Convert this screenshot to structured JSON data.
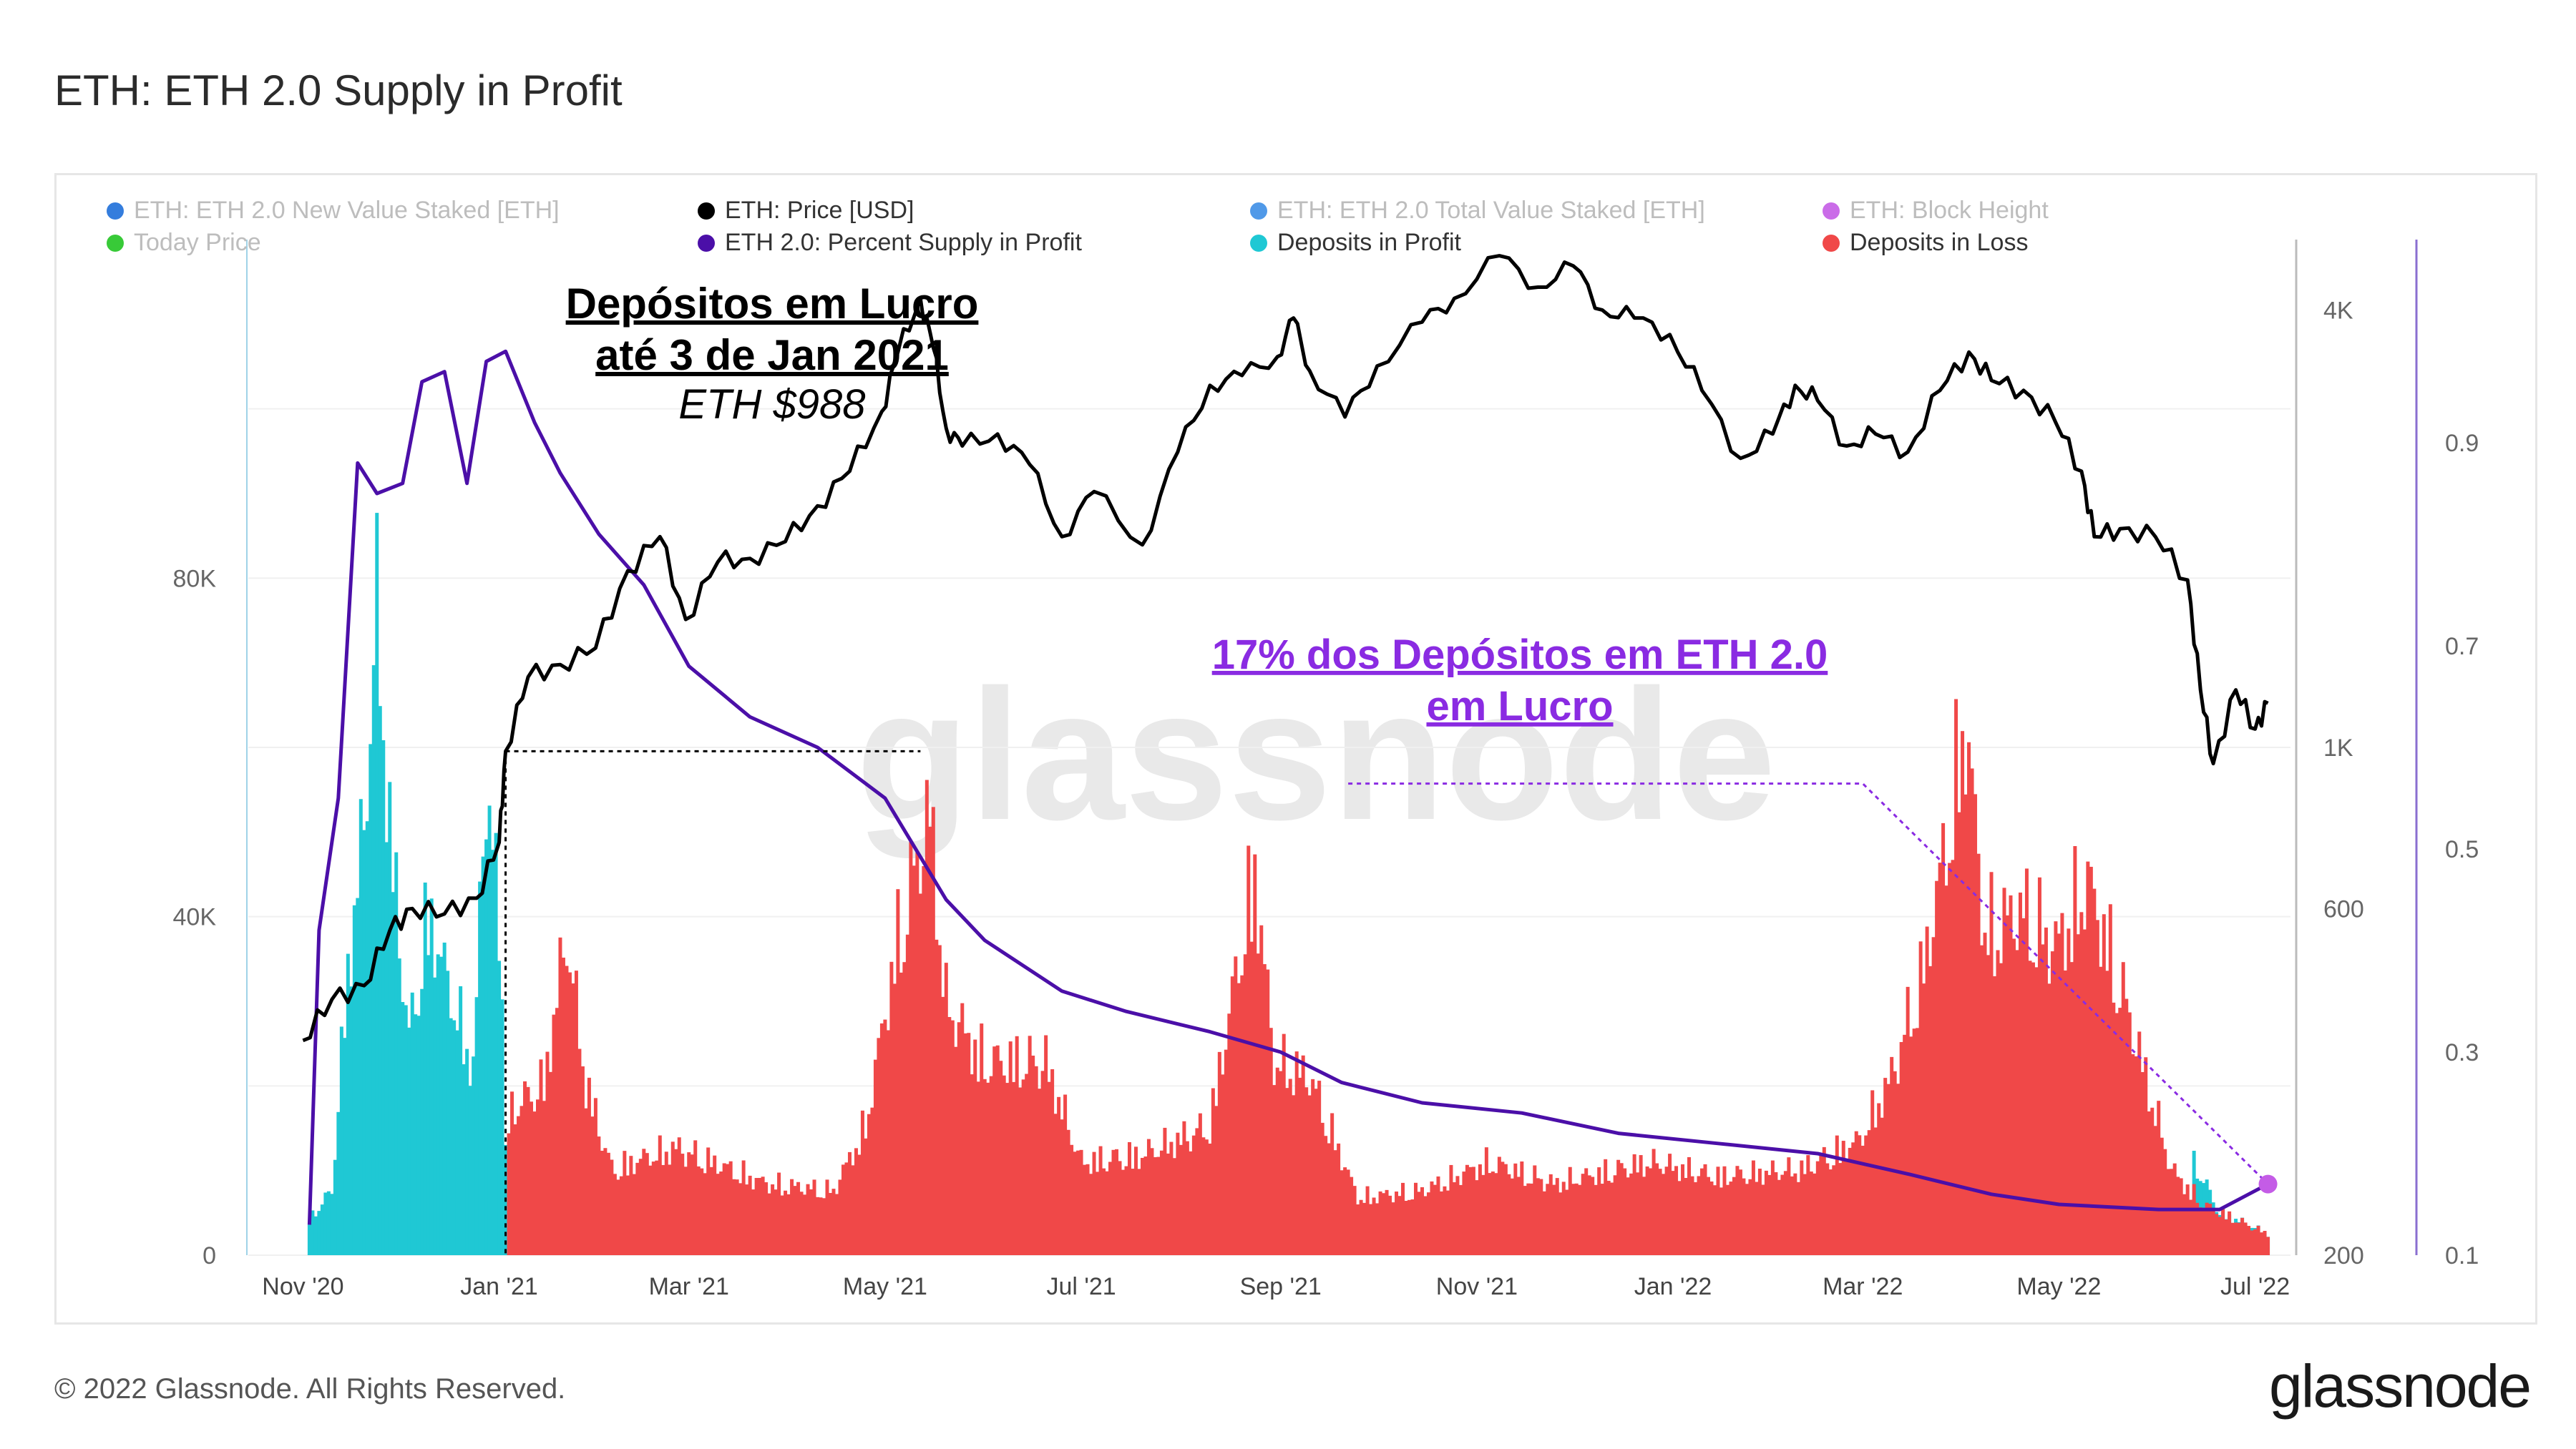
{
  "page": {
    "title": "ETH: ETH 2.0 Supply in Profit",
    "copyright": "© 2022 Glassnode. All Rights Reserved.",
    "logo": "glassnode",
    "watermark": "glassnode"
  },
  "chart_data": {
    "type": "bar",
    "x_type": "date",
    "x_ticks": [
      "Nov '20",
      "Jan '21",
      "Mar '21",
      "May '21",
      "Jul '21",
      "Sep '21",
      "Nov '21",
      "Jan '22",
      "Mar '22",
      "May '22",
      "Jul '22"
    ],
    "y_left": {
      "range": [
        0,
        120000
      ],
      "ticks": [
        "0",
        "40K",
        "80K"
      ]
    },
    "y_price": {
      "scale": "log",
      "range": [
        200,
        5000
      ],
      "ticks": [
        "200",
        "600",
        "1K",
        "4K"
      ]
    },
    "y_percent": {
      "range": [
        0.1,
        1.1
      ],
      "ticks": [
        "0.1",
        "0.3",
        "0.5",
        "0.7",
        "0.9"
      ]
    },
    "legend": {
      "placement": "top",
      "items": [
        {
          "label": "ETH: ETH 2.0 New Value Staked [ETH]",
          "color": "#1e6fd9",
          "muted": true
        },
        {
          "label": "ETH: Price [USD]",
          "color": "#000000",
          "muted": false
        },
        {
          "label": "ETH: ETH 2.0 Total Value Staked [ETH]",
          "color": "#3d8ee6",
          "muted": true
        },
        {
          "label": "ETH: Block Height",
          "color": "#c45ce6",
          "muted": true
        },
        {
          "label": "Today Price",
          "color": "#22c422",
          "muted": true
        },
        {
          "label": "ETH 2.0: Percent Supply in Profit",
          "color": "#4b0fa8",
          "muted": false
        },
        {
          "label": "Deposits in Profit",
          "color": "#1fc8d4",
          "muted": false
        },
        {
          "label": "Deposits in Loss",
          "color": "#f04848",
          "muted": false
        }
      ]
    },
    "series": [
      {
        "name": "ETH: Price [USD]",
        "axis": "price",
        "color": "#000000",
        "points": [
          [
            "2020-11-01",
            395
          ],
          [
            "2020-11-10",
            450
          ],
          [
            "2020-11-20",
            470
          ],
          [
            "2020-11-28",
            560
          ],
          [
            "2020-12-05",
            600
          ],
          [
            "2020-12-15",
            590
          ],
          [
            "2020-12-25",
            620
          ],
          [
            "2021-01-01",
            740
          ],
          [
            "2021-01-03",
            988
          ],
          [
            "2021-01-10",
            1250
          ],
          [
            "2021-01-20",
            1300
          ],
          [
            "2021-01-31",
            1370
          ],
          [
            "2021-02-10",
            1750
          ],
          [
            "2021-02-20",
            1950
          ],
          [
            "2021-02-28",
            1500
          ],
          [
            "2021-03-10",
            1800
          ],
          [
            "2021-03-20",
            1820
          ],
          [
            "2021-03-31",
            1920
          ],
          [
            "2021-04-10",
            2150
          ],
          [
            "2021-04-20",
            2400
          ],
          [
            "2021-04-30",
            2900
          ],
          [
            "2021-05-05",
            3500
          ],
          [
            "2021-05-12",
            4150
          ],
          [
            "2021-05-16",
            3550
          ],
          [
            "2021-05-20",
            2750
          ],
          [
            "2021-05-25",
            2600
          ],
          [
            "2021-06-05",
            2700
          ],
          [
            "2021-06-15",
            2450
          ],
          [
            "2021-06-25",
            1950
          ],
          [
            "2021-07-05",
            2250
          ],
          [
            "2021-07-20",
            1900
          ],
          [
            "2021-07-31",
            2550
          ],
          [
            "2021-08-10",
            3150
          ],
          [
            "2021-08-20",
            3250
          ],
          [
            "2021-08-31",
            3450
          ],
          [
            "2021-09-05",
            3900
          ],
          [
            "2021-09-10",
            3300
          ],
          [
            "2021-09-21",
            2850
          ],
          [
            "2021-10-01",
            3350
          ],
          [
            "2021-10-15",
            3850
          ],
          [
            "2021-10-25",
            4150
          ],
          [
            "2021-11-08",
            4750
          ],
          [
            "2021-11-20",
            4300
          ],
          [
            "2021-12-01",
            4600
          ],
          [
            "2021-12-10",
            4000
          ],
          [
            "2021-12-20",
            3900
          ],
          [
            "2021-12-31",
            3700
          ],
          [
            "2022-01-10",
            3100
          ],
          [
            "2022-01-22",
            2500
          ],
          [
            "2022-02-01",
            2700
          ],
          [
            "2022-02-08",
            3150
          ],
          [
            "2022-02-15",
            3000
          ],
          [
            "2022-02-24",
            2600
          ],
          [
            "2022-03-05",
            2700
          ],
          [
            "2022-03-15",
            2550
          ],
          [
            "2022-03-25",
            3100
          ],
          [
            "2022-04-03",
            3500
          ],
          [
            "2022-04-10",
            3200
          ],
          [
            "2022-04-20",
            3100
          ],
          [
            "2022-04-30",
            2800
          ],
          [
            "2022-05-08",
            2400
          ],
          [
            "2022-05-12",
            1950
          ],
          [
            "2022-05-20",
            2000
          ],
          [
            "2022-05-31",
            1950
          ],
          [
            "2022-06-10",
            1700
          ],
          [
            "2022-06-14",
            1200
          ],
          [
            "2022-06-18",
            950
          ],
          [
            "2022-06-25",
            1200
          ],
          [
            "2022-07-01",
            1060
          ],
          [
            "2022-07-05",
            1150
          ]
        ]
      },
      {
        "name": "ETH 2.0: Percent Supply in Profit",
        "axis": "percent",
        "color": "#4b0fa8",
        "points": [
          [
            "2020-11-03",
            0.13
          ],
          [
            "2020-11-06",
            0.42
          ],
          [
            "2020-11-12",
            0.55
          ],
          [
            "2020-11-18",
            0.88
          ],
          [
            "2020-11-24",
            0.85
          ],
          [
            "2020-12-02",
            0.86
          ],
          [
            "2020-12-08",
            0.96
          ],
          [
            "2020-12-15",
            0.97
          ],
          [
            "2020-12-22",
            0.86
          ],
          [
            "2020-12-28",
            0.98
          ],
          [
            "2021-01-03",
            0.99
          ],
          [
            "2021-01-12",
            0.92
          ],
          [
            "2021-01-20",
            0.87
          ],
          [
            "2021-02-01",
            0.81
          ],
          [
            "2021-02-15",
            0.76
          ],
          [
            "2021-03-01",
            0.68
          ],
          [
            "2021-03-20",
            0.63
          ],
          [
            "2021-04-10",
            0.6
          ],
          [
            "2021-05-01",
            0.55
          ],
          [
            "2021-05-20",
            0.45
          ],
          [
            "2021-06-01",
            0.41
          ],
          [
            "2021-06-25",
            0.36
          ],
          [
            "2021-07-15",
            0.34
          ],
          [
            "2021-08-10",
            0.32
          ],
          [
            "2021-09-01",
            0.3
          ],
          [
            "2021-09-20",
            0.27
          ],
          [
            "2021-10-15",
            0.25
          ],
          [
            "2021-11-15",
            0.24
          ],
          [
            "2021-12-15",
            0.22
          ],
          [
            "2022-01-15",
            0.21
          ],
          [
            "2022-02-15",
            0.2
          ],
          [
            "2022-03-15",
            0.18
          ],
          [
            "2022-04-10",
            0.16
          ],
          [
            "2022-05-01",
            0.15
          ],
          [
            "2022-06-01",
            0.145
          ],
          [
            "2022-06-20",
            0.145
          ],
          [
            "2022-07-05",
            0.17
          ]
        ]
      },
      {
        "name": "Deposits in Profit",
        "axis": "left",
        "color": "#1fc8d4",
        "profile": [
          [
            "2020-11-03",
            5000
          ],
          [
            "2020-11-10",
            9000
          ],
          [
            "2020-11-15",
            40000
          ],
          [
            "2020-11-20",
            60000
          ],
          [
            "2020-11-24",
            90000
          ],
          [
            "2020-11-28",
            60000
          ],
          [
            "2020-12-04",
            30000
          ],
          [
            "2020-12-10",
            48000
          ],
          [
            "2020-12-16",
            38000
          ],
          [
            "2020-12-24",
            26000
          ],
          [
            "2020-12-28",
            68000
          ],
          [
            "2021-01-02",
            40000
          ],
          [
            "2021-01-03",
            18000
          ],
          [
            "2022-06-10",
            0
          ],
          [
            "2022-06-12",
            13000
          ],
          [
            "2022-06-20",
            6000
          ],
          [
            "2022-07-05",
            3000
          ]
        ]
      },
      {
        "name": "Deposits in Loss",
        "axis": "left",
        "color": "#f04848",
        "profile": [
          [
            "2021-01-04",
            20000
          ],
          [
            "2021-01-15",
            24000
          ],
          [
            "2021-01-22",
            45000
          ],
          [
            "2021-01-28",
            24000
          ],
          [
            "2021-02-05",
            12000
          ],
          [
            "2021-02-25",
            15000
          ],
          [
            "2021-03-25",
            10000
          ],
          [
            "2021-04-15",
            9000
          ],
          [
            "2021-04-25",
            18000
          ],
          [
            "2021-05-05",
            44000
          ],
          [
            "2021-05-15",
            62000
          ],
          [
            "2021-05-20",
            35000
          ],
          [
            "2021-06-01",
            27000
          ],
          [
            "2021-06-20",
            27000
          ],
          [
            "2021-07-01",
            13000
          ],
          [
            "2021-07-20",
            14000
          ],
          [
            "2021-08-10",
            18000
          ],
          [
            "2021-08-24",
            54000
          ],
          [
            "2021-08-30",
            27000
          ],
          [
            "2021-09-10",
            25000
          ],
          [
            "2021-09-25",
            8000
          ],
          [
            "2021-10-15",
            9000
          ],
          [
            "2021-11-05",
            13000
          ],
          [
            "2021-11-25",
            10000
          ],
          [
            "2021-12-25",
            13000
          ],
          [
            "2022-01-15",
            11000
          ],
          [
            "2022-02-10",
            12000
          ],
          [
            "2022-02-28",
            16000
          ],
          [
            "2022-03-10",
            25000
          ],
          [
            "2022-03-20",
            40000
          ],
          [
            "2022-03-28",
            60000
          ],
          [
            "2022-04-02",
            75000
          ],
          [
            "2022-04-08",
            45000
          ],
          [
            "2022-04-20",
            48000
          ],
          [
            "2022-04-30",
            43000
          ],
          [
            "2022-05-10",
            52000
          ],
          [
            "2022-05-20",
            38000
          ],
          [
            "2022-06-05",
            12000
          ],
          [
            "2022-06-15",
            7000
          ],
          [
            "2022-07-05",
            3000
          ]
        ]
      }
    ],
    "annotations": [
      {
        "lines": [
          "Depósitos em Lucro",
          "até 3 de Jan 2021"
        ],
        "sub": "ETH $988",
        "date": "2021-01-03",
        "price": 988
      },
      {
        "lines": [
          "17% dos Depósitos em ETH 2.0",
          "em Lucro"
        ],
        "color": "#8a2be2",
        "date": "2022-07-05",
        "value": 0.17
      }
    ]
  }
}
